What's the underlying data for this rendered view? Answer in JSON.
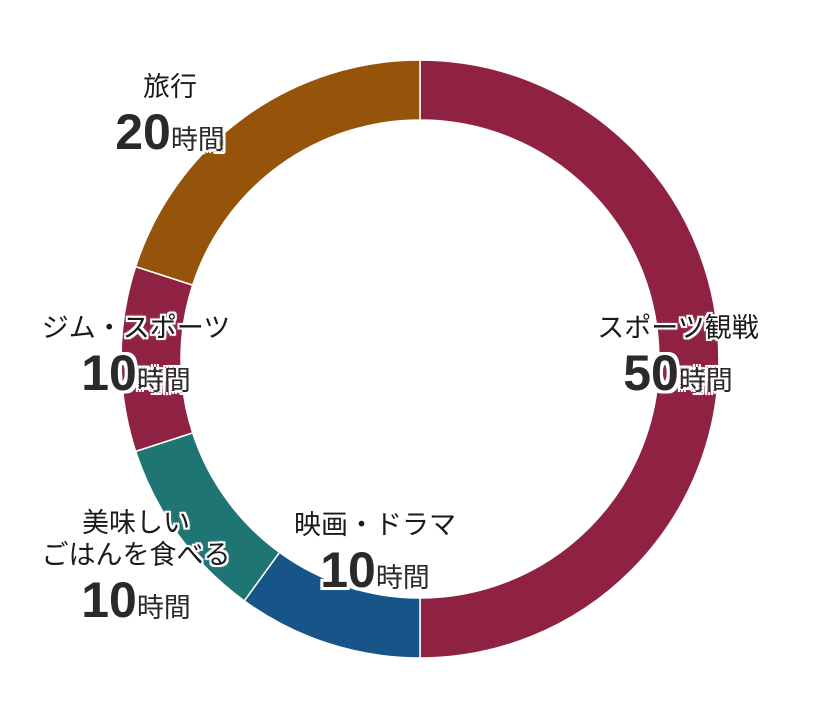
{
  "chart_data": {
    "type": "pie",
    "subtype": "donut",
    "title": "",
    "unit": "時間",
    "total": 100,
    "categories": [
      "スポーツ観戦",
      "映画・ドラマ",
      "美味しいごはんを食べる",
      "ジム・スポーツ",
      "旅行"
    ],
    "values": [
      50,
      10,
      10,
      10,
      20
    ],
    "colors": [
      "#8f2242",
      "#175589",
      "#1f7474",
      "#8f2242",
      "#95540a"
    ],
    "start_angle_deg": 0,
    "direction": "clockwise",
    "legend": "none (direct labels)"
  },
  "labels": [
    {
      "category": "スポーツ観戦",
      "value": "50",
      "unit": "時間"
    },
    {
      "category": "映画・ドラマ",
      "value": "10",
      "unit": "時間"
    },
    {
      "category_line1": "美味しい",
      "category_line2": "ごはんを食べる",
      "value": "10",
      "unit": "時間"
    },
    {
      "category": "ジム・スポーツ",
      "value": "10",
      "unit": "時間"
    },
    {
      "category": "旅行",
      "value": "20",
      "unit": "時間"
    }
  ]
}
